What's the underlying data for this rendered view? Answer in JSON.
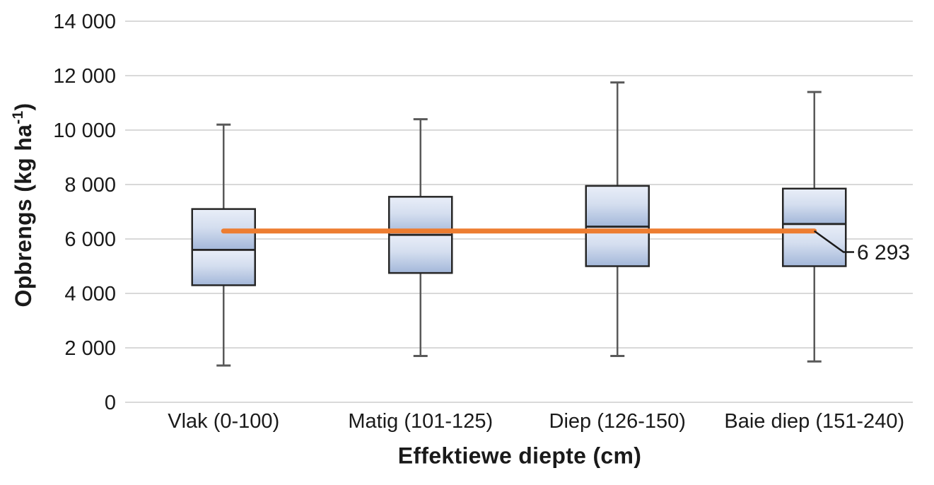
{
  "chart_data": {
    "type": "box",
    "title": "",
    "xlabel": "Effektiewe diepte (cm)",
    "ylabel": "Opbrengs (kg ha⁻¹)",
    "ylabel_parts": {
      "before": "Opbrengs (kg ha",
      "sup": "-1",
      "after": ")"
    },
    "ylim": [
      0,
      14000
    ],
    "yticks": [
      0,
      2000,
      4000,
      6000,
      8000,
      10000,
      12000,
      14000
    ],
    "ytick_labels": [
      "0",
      "2 000",
      "4 000",
      "6 000",
      "8 000",
      "10 000",
      "12 000",
      "14 000"
    ],
    "categories": [
      "Vlak (0-100)",
      "Matig (101-125)",
      "Diep (126-150)",
      "Baie diep (151-240)"
    ],
    "boxes": [
      {
        "category": "Vlak (0-100)",
        "whisker_low": 1350,
        "q1": 4300,
        "median": 5600,
        "q3": 7100,
        "whisker_high": 10200
      },
      {
        "category": "Matig (101-125)",
        "whisker_low": 1700,
        "q1": 4750,
        "median": 6150,
        "q3": 7550,
        "whisker_high": 10400
      },
      {
        "category": "Diep (126-150)",
        "whisker_low": 1700,
        "q1": 5000,
        "median": 6450,
        "q3": 7950,
        "whisker_high": 11750
      },
      {
        "category": "Baie diep (151-240)",
        "whisker_low": 1500,
        "q1": 5000,
        "median": 6550,
        "q3": 7850,
        "whisker_high": 11400
      }
    ],
    "mean_line": {
      "value": 6293,
      "label": "6 293",
      "from_category_index": 0,
      "to_category_index": 3
    },
    "grid": true,
    "legend": false
  },
  "colors": {
    "background": "#ffffff",
    "gridline": "#d9d9d9",
    "box_fill_top": "#e9eef8",
    "box_fill_mid": "#d4deef",
    "box_fill_bottom": "#a3b7d9",
    "box_border": "#262626",
    "whisker": "#595959",
    "mean_line": "#ED7D31",
    "leader": "#1a1a1a",
    "text": "#1a1a1a"
  }
}
